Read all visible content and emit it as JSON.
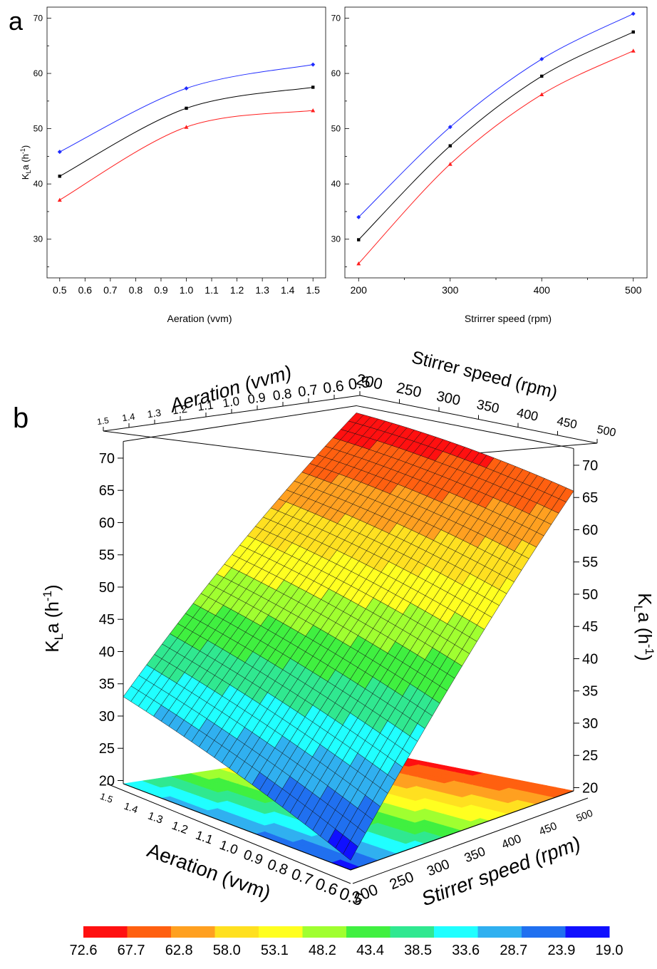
{
  "panel_a": {
    "label": "a",
    "ylabel_main": "K",
    "ylabel_sub": "L",
    "ylabel_tail": "a (h",
    "ylabel_sup": "-1",
    "ylabel_close": ")"
  },
  "panel_b": {
    "label": "b",
    "zlabel_main": "K",
    "zlabel_sub": "L",
    "zlabel_tail": "a (h",
    "zlabel_sup": "-1",
    "zlabel_close": ")",
    "aeration_axis_label": "Aeration (vvm)",
    "speed_axis_label": "Stirrer speed (rpm)"
  },
  "chart_data": [
    {
      "type": "line",
      "xlabel": "Aeration (vvm)",
      "ylabel": "KLa (h-1)",
      "x": [
        0.5,
        1.0,
        1.5
      ],
      "xlim": [
        0.45,
        1.55
      ],
      "ylim": [
        23,
        72
      ],
      "xticks": [
        "0.5",
        "0.6",
        "0.7",
        "0.8",
        "0.9",
        "1.0",
        "1.1",
        "1.2",
        "1.3",
        "1.4",
        "1.5"
      ],
      "yticks": [
        "30",
        "40",
        "50",
        "60",
        "70"
      ],
      "series": [
        {
          "values": [
            45.8,
            57.3,
            61.6
          ],
          "color": "#1f2bff",
          "marker": "diamond"
        },
        {
          "values": [
            41.4,
            53.7,
            57.5
          ],
          "color": "#000000",
          "marker": "square"
        },
        {
          "values": [
            37.1,
            50.3,
            53.3
          ],
          "color": "#ff1f1f",
          "marker": "triangle"
        }
      ]
    },
    {
      "type": "line",
      "xlabel": "Strirrer speed (rpm)",
      "ylabel": "",
      "x": [
        200,
        300,
        400,
        500
      ],
      "xlim": [
        185,
        515
      ],
      "ylim": [
        23,
        72
      ],
      "xticks": [
        "200",
        "300",
        "400",
        "500"
      ],
      "yticks": [
        "30",
        "40",
        "50",
        "60",
        "70"
      ],
      "series": [
        {
          "values": [
            34.0,
            50.3,
            62.6,
            70.8
          ],
          "color": "#1f2bff",
          "marker": "diamond"
        },
        {
          "values": [
            29.9,
            46.9,
            59.5,
            67.5
          ],
          "color": "#000000",
          "marker": "square"
        },
        {
          "values": [
            25.6,
            43.6,
            56.2,
            64.1
          ],
          "color": "#ff1f1f",
          "marker": "triangle"
        }
      ]
    },
    {
      "type": "surface",
      "xlabel": "Aeration (vvm)",
      "ylabel": "Stirrer speed (rpm)",
      "zlabel": "KLa (h-1)",
      "xlim": [
        0.5,
        1.5
      ],
      "ylim": [
        200,
        500
      ],
      "zlim": [
        19,
        72.6
      ],
      "aeration_ticks": [
        "1.5",
        "1.4",
        "1.3",
        "1.2",
        "1.1",
        "1.0",
        "0.9",
        "0.8",
        "0.7",
        "0.6",
        "0.5"
      ],
      "speed_ticks_top": [
        "200",
        "250",
        "300",
        "350",
        "400",
        "450",
        "500"
      ],
      "speed_ticks_bottom": [
        "200",
        "250",
        "300",
        "350",
        "400",
        "450",
        "500"
      ],
      "z_ticks": [
        "20",
        "25",
        "30",
        "35",
        "40",
        "45",
        "50",
        "55",
        "60",
        "65",
        "70"
      ],
      "corner_values": [
        {
          "aeration": 0.5,
          "speed": 200,
          "kla": 21.0
        },
        {
          "aeration": 0.5,
          "speed": 500,
          "kla": 66.0
        },
        {
          "aeration": 1.5,
          "speed": 200,
          "kla": 33.0
        },
        {
          "aeration": 1.5,
          "speed": 500,
          "kla": 71.5
        }
      ],
      "colorbar": {
        "labels": [
          "72.6",
          "67.7",
          "62.8",
          "58.0",
          "53.1",
          "48.2",
          "43.4",
          "38.5",
          "33.6",
          "28.7",
          "23.9",
          "19.0"
        ],
        "colors": [
          "#ff1010",
          "#ff6010",
          "#ffa020",
          "#ffe020",
          "#ffff20",
          "#a0ff30",
          "#40f040",
          "#30e890",
          "#20ffff",
          "#30b0f0",
          "#2070f0",
          "#1010ff"
        ]
      }
    }
  ]
}
